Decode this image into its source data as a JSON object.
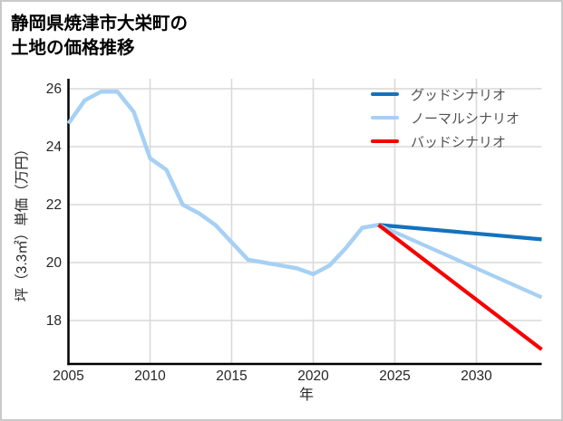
{
  "header": {
    "title_line1": "静岡県焼津市大栄町の",
    "title_line2": "土地の価格推移"
  },
  "colors": {
    "good_scenario": "#1472bd",
    "normal_scenario": "#a6d0f4",
    "bad_scenario": "#f60000",
    "grid": "#d9d9d9",
    "axis": "#000000",
    "card_border": "#c9c9c9"
  },
  "chart_data": {
    "type": "line",
    "title": "静岡県焼津市大栄町の土地の価格推移",
    "xlabel": "年",
    "ylabel": "坪（3.3㎡）単価（万円）",
    "x_ticks": [
      2005,
      2010,
      2015,
      2020,
      2025,
      2030
    ],
    "y_ticks": [
      26,
      24,
      22,
      20,
      18
    ],
    "xlim": [
      2005,
      2034.3
    ],
    "ylim": [
      16.5,
      26.4
    ],
    "grid": true,
    "legend_position": "top-right-inside",
    "series": [
      {
        "id": "historical",
        "color": "#a6d0f4",
        "x": [
          2005,
          2006,
          2007,
          2008,
          2009,
          2010,
          2011,
          2012,
          2013,
          2014,
          2015,
          2016,
          2017,
          2018,
          2019,
          2020,
          2021,
          2022,
          2023,
          2024
        ],
        "values": [
          24.8,
          25.6,
          25.9,
          25.9,
          25.2,
          23.6,
          23.2,
          22.0,
          21.7,
          21.3,
          20.7,
          20.1,
          20.0,
          19.9,
          19.8,
          19.6,
          19.9,
          20.5,
          21.2,
          21.3
        ]
      },
      {
        "id": "good",
        "name": "グッドシナリオ",
        "color": "#1472bd",
        "x": [
          2024,
          2034
        ],
        "values": [
          21.3,
          20.8
        ]
      },
      {
        "id": "normal",
        "name": "ノーマルシナリオ",
        "color": "#a6d0f4",
        "x": [
          2024,
          2034
        ],
        "values": [
          21.3,
          18.8
        ]
      },
      {
        "id": "bad",
        "name": "バッドシナリオ",
        "color": "#f60000",
        "x": [
          2024,
          2034
        ],
        "values": [
          21.3,
          17.0
        ]
      }
    ],
    "legend": [
      {
        "label": "グッドシナリオ",
        "color": "#1472bd"
      },
      {
        "label": "ノーマルシナリオ",
        "color": "#a6d0f4"
      },
      {
        "label": "バッドシナリオ",
        "color": "#f60000"
      }
    ]
  }
}
